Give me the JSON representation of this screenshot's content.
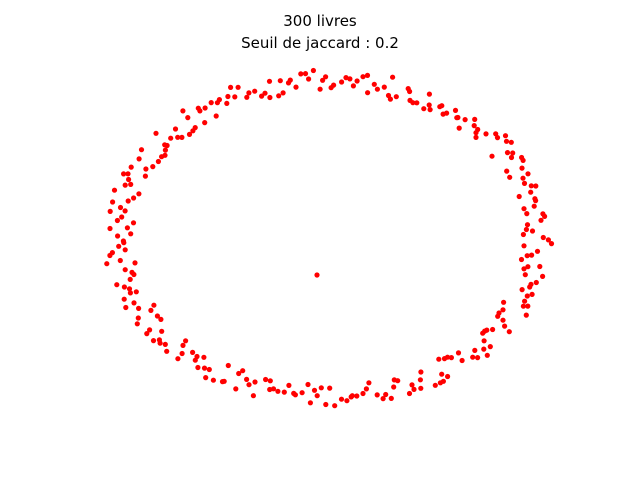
{
  "chart_data": {
    "type": "scatter",
    "title": "300 livres",
    "subtitle": "Seuil de jaccard : 0.2",
    "xlabel": "",
    "ylabel": "",
    "axes_visible": false,
    "grid": false,
    "marker_color": "#ff0000",
    "layout": "elliptical-ring-with-center-node",
    "node_count": 300,
    "center_node": {
      "x": 0.0,
      "y": 0.0
    },
    "ring": {
      "center": [
        0.0,
        0.03
      ],
      "radius_x": 1.0,
      "radius_y": 1.0,
      "jitter": 0.08
    }
  }
}
